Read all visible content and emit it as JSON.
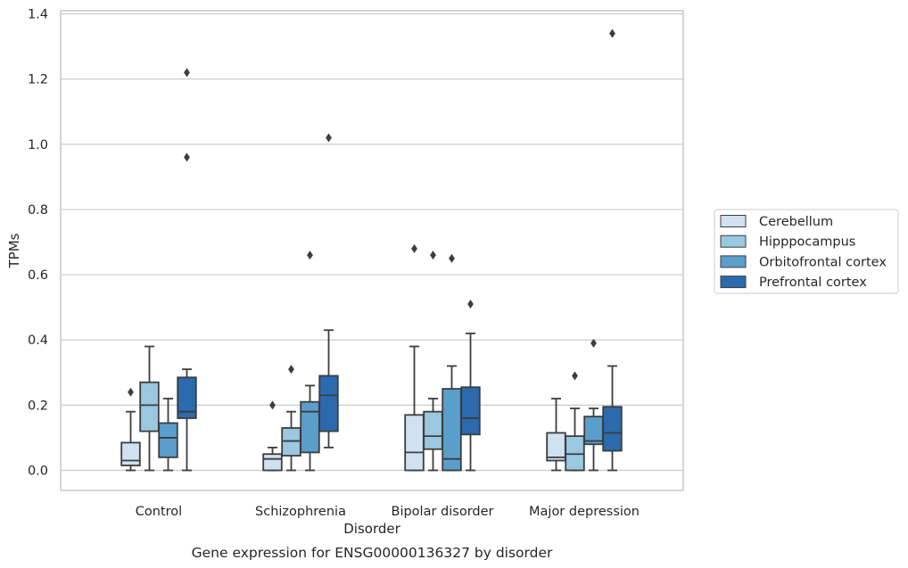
{
  "chart_data": {
    "type": "boxplot",
    "caption": "Gene expression for ENSG00000136327 by disorder",
    "xlabel": "Disorder",
    "ylabel": "TPMs",
    "ylim": [
      -0.06,
      1.41
    ],
    "yticks": [
      "0.0",
      "0.2",
      "0.4",
      "0.6",
      "0.8",
      "1.0",
      "1.2",
      "1.4"
    ],
    "ytick_values": [
      0.0,
      0.2,
      0.4,
      0.6,
      0.8,
      1.0,
      1.2,
      1.4
    ],
    "grid": "horizontal",
    "legend_position": "right",
    "categories": [
      "Control",
      "Schizophrenia",
      "Bipolar disorder",
      "Major depression"
    ],
    "series": [
      {
        "name": "Cerebellum",
        "color": "#d0e1f2",
        "boxes": [
          {
            "whisker_low": 0.0,
            "q1": 0.015,
            "median": 0.03,
            "q3": 0.085,
            "whisker_high": 0.18,
            "outliers": [
              0.24
            ]
          },
          {
            "whisker_low": 0.0,
            "q1": 0.0,
            "median": 0.035,
            "q3": 0.05,
            "whisker_high": 0.07,
            "outliers": [
              0.2
            ]
          },
          {
            "whisker_low": 0.0,
            "q1": 0.0,
            "median": 0.055,
            "q3": 0.17,
            "whisker_high": 0.38,
            "outliers": [
              0.68
            ]
          },
          {
            "whisker_low": 0.0,
            "q1": 0.03,
            "median": 0.04,
            "q3": 0.115,
            "whisker_high": 0.22,
            "outliers": []
          }
        ]
      },
      {
        "name": "Hipppocampus",
        "color": "#9ac8e0",
        "boxes": [
          {
            "whisker_low": 0.0,
            "q1": 0.12,
            "median": 0.2,
            "q3": 0.27,
            "whisker_high": 0.38,
            "outliers": []
          },
          {
            "whisker_low": 0.0,
            "q1": 0.045,
            "median": 0.09,
            "q3": 0.13,
            "whisker_high": 0.18,
            "outliers": [
              0.31
            ]
          },
          {
            "whisker_low": 0.0,
            "q1": 0.065,
            "median": 0.105,
            "q3": 0.18,
            "whisker_high": 0.22,
            "outliers": [
              0.66
            ]
          },
          {
            "whisker_low": 0.0,
            "q1": 0.0,
            "median": 0.05,
            "q3": 0.105,
            "whisker_high": 0.19,
            "outliers": [
              0.29
            ]
          }
        ]
      },
      {
        "name": "Orbitofrontal cortex",
        "color": "#5a9ecc",
        "boxes": [
          {
            "whisker_low": 0.0,
            "q1": 0.04,
            "median": 0.1,
            "q3": 0.145,
            "whisker_high": 0.22,
            "outliers": []
          },
          {
            "whisker_low": 0.0,
            "q1": 0.055,
            "median": 0.18,
            "q3": 0.21,
            "whisker_high": 0.26,
            "outliers": [
              0.66
            ]
          },
          {
            "whisker_low": 0.0,
            "q1": 0.0,
            "median": 0.035,
            "q3": 0.25,
            "whisker_high": 0.32,
            "outliers": [
              0.65
            ]
          },
          {
            "whisker_low": 0.0,
            "q1": 0.08,
            "median": 0.09,
            "q3": 0.165,
            "whisker_high": 0.19,
            "outliers": [
              0.39
            ]
          }
        ]
      },
      {
        "name": "Prefrontal cortex",
        "color": "#2a6aad",
        "boxes": [
          {
            "whisker_low": 0.0,
            "q1": 0.16,
            "median": 0.18,
            "q3": 0.285,
            "whisker_high": 0.31,
            "outliers": [
              0.96,
              1.22
            ]
          },
          {
            "whisker_low": 0.07,
            "q1": 0.12,
            "median": 0.23,
            "q3": 0.29,
            "whisker_high": 0.43,
            "outliers": [
              1.02
            ]
          },
          {
            "whisker_low": 0.0,
            "q1": 0.11,
            "median": 0.16,
            "q3": 0.255,
            "whisker_high": 0.42,
            "outliers": [
              0.51
            ]
          },
          {
            "whisker_low": 0.0,
            "q1": 0.06,
            "median": 0.115,
            "q3": 0.195,
            "whisker_high": 0.32,
            "outliers": [
              1.34
            ]
          }
        ]
      }
    ]
  }
}
